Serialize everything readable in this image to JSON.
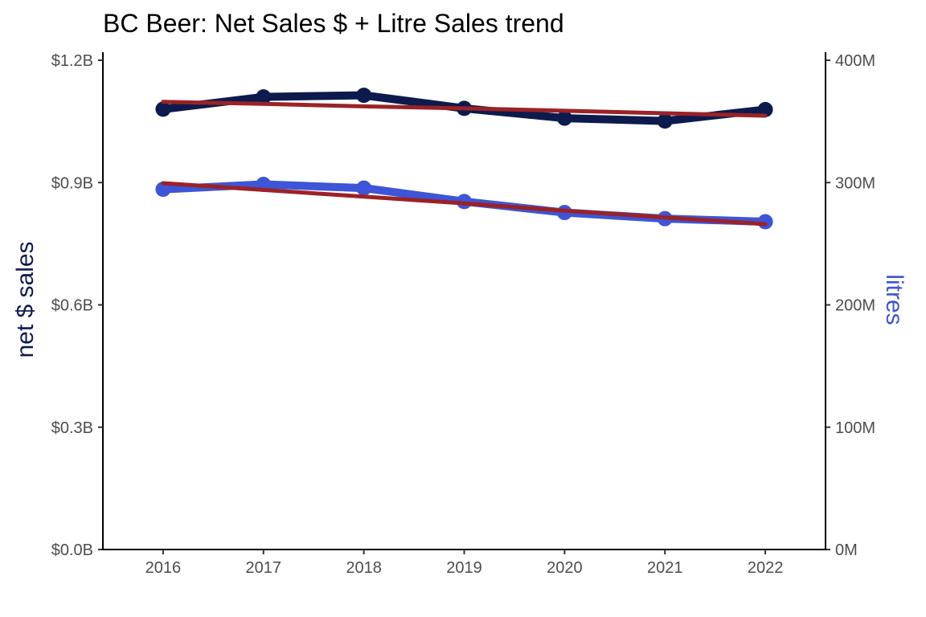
{
  "chart_data": {
    "type": "line",
    "title": "BC Beer: Net Sales $ + Litre Sales trend",
    "x": [
      "2016",
      "2017",
      "2018",
      "2019",
      "2020",
      "2021",
      "2022"
    ],
    "xlim": [
      2015.4,
      2022.6
    ],
    "y_left": {
      "label": "net $ sales",
      "label_color": "#0d1a4d",
      "range": [
        0,
        1.2
      ],
      "ticks": [
        0.0,
        0.3,
        0.6,
        0.9,
        1.2
      ],
      "tick_labels": [
        "$0.0B",
        "$0.3B",
        "$0.6B",
        "$0.9B",
        "$1.2B"
      ]
    },
    "y_right": {
      "label": "litres",
      "label_color": "#3d55d6",
      "range": [
        0,
        400
      ],
      "ticks": [
        0,
        100,
        200,
        300,
        400
      ],
      "tick_labels": [
        "0M",
        "100M",
        "200M",
        "300M",
        "400M"
      ]
    },
    "series": [
      {
        "axis": "left",
        "color": "#0d1a4d",
        "values": [
          1.08,
          1.11,
          1.114,
          1.082,
          1.058,
          1.051,
          1.079
        ]
      },
      {
        "axis": "left",
        "color": "#9b2226",
        "values": [
          1.098,
          1.093,
          1.087,
          1.082,
          1.076,
          1.07,
          1.064
        ]
      },
      {
        "axis": "right",
        "color": "#3d55d6",
        "values": [
          294.5,
          298.5,
          295.5,
          284.5,
          275.5,
          270.5,
          268.0
        ]
      },
      {
        "axis": "right",
        "color": "#9b2226",
        "values": [
          299.5,
          294.0,
          288.5,
          283.0,
          277.0,
          271.5,
          266.0
        ]
      }
    ],
    "grid": false
  }
}
